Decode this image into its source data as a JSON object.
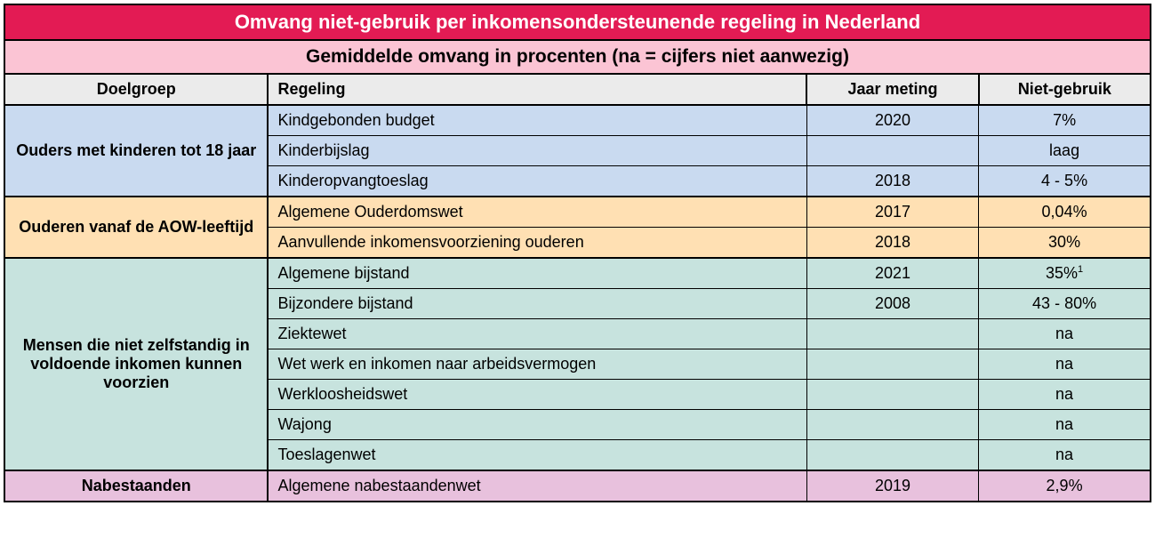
{
  "colors": {
    "title_bg": "#e31b54",
    "subtitle_bg": "#fbc4d4",
    "header_bg": "#ebebeb",
    "group_bgs": [
      "#c9daf0",
      "#ffe0b3",
      "#c7e3de",
      "#e8c1dd"
    ],
    "title_text": "#ffffff",
    "body_text": "#000000"
  },
  "title": "Omvang niet-gebruik per inkomensondersteunende regeling in Nederland",
  "subtitle": "Gemiddelde omvang in procenten (na = cijfers niet aanwezig)",
  "columns": {
    "doelgroep": "Doelgroep",
    "regeling": "Regeling",
    "jaar": "Jaar meting",
    "niet": "Niet-gebruik"
  },
  "groups": [
    {
      "doelgroep": "Ouders met kinderen tot 18 jaar",
      "rows": [
        {
          "regeling": "Kindgebonden budget",
          "jaar": "2020",
          "niet": "7%"
        },
        {
          "regeling": "Kinderbijslag",
          "jaar": "",
          "niet": "laag"
        },
        {
          "regeling": "Kinderopvangtoeslag",
          "jaar": "2018",
          "niet": "4 - 5%"
        }
      ]
    },
    {
      "doelgroep": "Ouderen vanaf de AOW-leeftijd",
      "rows": [
        {
          "regeling": "Algemene Ouderdomswet",
          "jaar": "2017",
          "niet": "0,04%"
        },
        {
          "regeling": "Aanvullende inkomensvoorziening ouderen",
          "jaar": "2018",
          "niet": "30%"
        }
      ]
    },
    {
      "doelgroep": "Mensen die niet zelfstandig in voldoende inkomen kunnen voorzien",
      "rows": [
        {
          "regeling": "Algemene bijstand",
          "jaar": "2021",
          "niet": "35%",
          "sup": "1"
        },
        {
          "regeling": "Bijzondere bijstand",
          "jaar": "2008",
          "niet": "43 - 80%"
        },
        {
          "regeling": "Ziektewet",
          "jaar": "",
          "niet": "na"
        },
        {
          "regeling": "Wet werk en inkomen naar arbeidsvermogen",
          "jaar": "",
          "niet": "na"
        },
        {
          "regeling": "Werkloosheidswet",
          "jaar": "",
          "niet": "na"
        },
        {
          "regeling": "Wajong",
          "jaar": "",
          "niet": "na"
        },
        {
          "regeling": "Toeslagenwet",
          "jaar": "",
          "niet": "na"
        }
      ]
    },
    {
      "doelgroep": "Nabestaanden",
      "rows": [
        {
          "regeling": "Algemene nabestaandenwet",
          "jaar": "2019",
          "niet": "2,9%"
        }
      ]
    }
  ]
}
